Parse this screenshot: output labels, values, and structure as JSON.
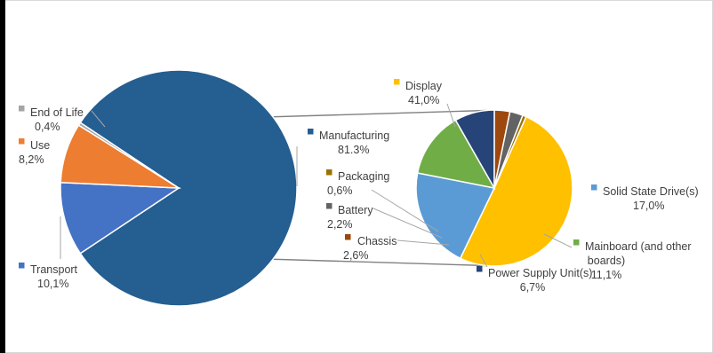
{
  "chart_data": {
    "type": "pie",
    "subtype": "pie-of-pie",
    "title": "",
    "main_pie": {
      "slices": [
        {
          "label": "Manufacturing",
          "value_text": "81.3%",
          "value": 81.3,
          "color": "#255e91"
        },
        {
          "label": "Transport",
          "value_text": "10,1%",
          "value": 10.1,
          "color": "#4472c4"
        },
        {
          "label": "Use",
          "value_text": "8,2%",
          "value": 8.2,
          "color": "#ed7d31"
        },
        {
          "label": "End of Life",
          "value_text": "0,4%",
          "value": 0.4,
          "color": "#a5a5a5"
        }
      ]
    },
    "detail_pie": {
      "of": "Manufacturing",
      "slices": [
        {
          "label": "Display",
          "value_text": "41,0%",
          "value": 41.0,
          "color": "#ffc000"
        },
        {
          "label": "Solid State Drive(s)",
          "value_text": "17,0%",
          "value": 17.0,
          "color": "#5b9bd5"
        },
        {
          "label": "Mainboard (and other boards)",
          "value_text": "11,1%",
          "value": 11.1,
          "color": "#70ad47"
        },
        {
          "label": "Power Supply Unit(s)",
          "value_text": "6,7%",
          "value": 6.7,
          "color": "#264478"
        },
        {
          "label": "Chassis",
          "value_text": "2,6%",
          "value": 2.6,
          "color": "#9e480e"
        },
        {
          "label": "Battery",
          "value_text": "2,2%",
          "value": 2.2,
          "color": "#636363"
        },
        {
          "label": "Packaging",
          "value_text": "0,6%",
          "value": 0.6,
          "color": "#997300"
        }
      ]
    },
    "legend": "none",
    "grid": false
  }
}
